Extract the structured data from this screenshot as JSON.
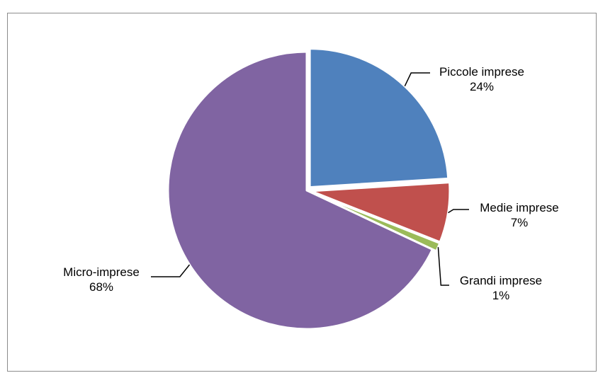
{
  "chart_data": {
    "type": "pie",
    "title": "",
    "slices": [
      {
        "label": "Piccole imprese",
        "value": 24,
        "pct": "24%",
        "color": "#4f81bd"
      },
      {
        "label": "Medie imprese",
        "value": 7,
        "pct": "7%",
        "color": "#c0504d"
      },
      {
        "label": "Grandi imprese",
        "value": 1,
        "pct": "1%",
        "color": "#9bbb59"
      },
      {
        "label": "Micro-imprese",
        "value": 68,
        "pct": "68%",
        "color": "#8064a2"
      }
    ],
    "legend": "none"
  }
}
